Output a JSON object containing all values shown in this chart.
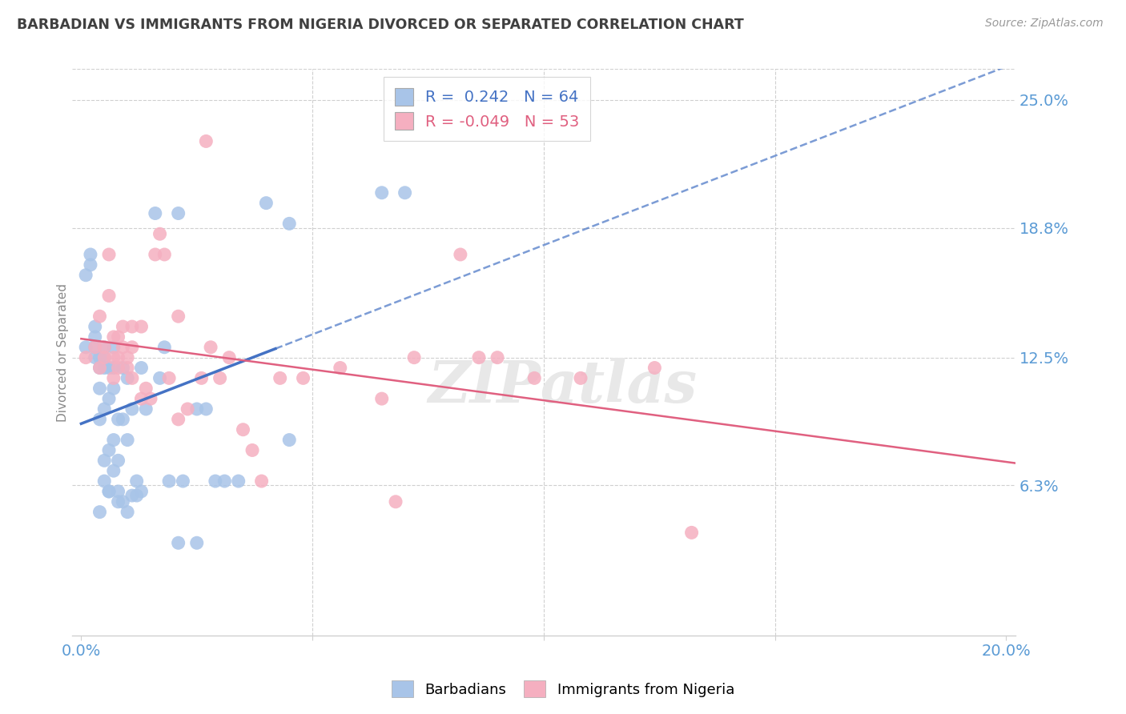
{
  "title": "BARBADIAN VS IMMIGRANTS FROM NIGERIA DIVORCED OR SEPARATED CORRELATION CHART",
  "source": "Source: ZipAtlas.com",
  "xlabel_ticks": [
    "0.0%",
    "",
    "",
    "",
    "20.0%"
  ],
  "xlabel_vals": [
    0.0,
    0.05,
    0.1,
    0.15,
    0.2
  ],
  "ylabel_ticks": [
    "6.3%",
    "12.5%",
    "18.8%",
    "25.0%"
  ],
  "ylabel_vals": [
    0.063,
    0.125,
    0.188,
    0.25
  ],
  "xlim": [
    -0.002,
    0.202
  ],
  "ylim": [
    -0.01,
    0.265
  ],
  "legend_blue_r": "0.242",
  "legend_blue_n": "64",
  "legend_pink_r": "-0.049",
  "legend_pink_n": "53",
  "blue_color": "#a8c4e8",
  "pink_color": "#f5afc0",
  "blue_line_color": "#4472c4",
  "pink_line_color": "#e06080",
  "axis_label_color": "#5b9bd5",
  "grid_color": "#d0d0d0",
  "title_color": "#404040",
  "blue_line_solid_end": 0.042,
  "blue_x": [
    0.001,
    0.001,
    0.002,
    0.002,
    0.003,
    0.003,
    0.003,
    0.003,
    0.004,
    0.004,
    0.004,
    0.004,
    0.004,
    0.005,
    0.005,
    0.005,
    0.005,
    0.005,
    0.005,
    0.006,
    0.006,
    0.006,
    0.006,
    0.006,
    0.007,
    0.007,
    0.007,
    0.007,
    0.007,
    0.008,
    0.008,
    0.008,
    0.008,
    0.009,
    0.009,
    0.009,
    0.01,
    0.01,
    0.01,
    0.011,
    0.011,
    0.012,
    0.012,
    0.013,
    0.013,
    0.014,
    0.016,
    0.017,
    0.018,
    0.019,
    0.021,
    0.022,
    0.025,
    0.027,
    0.029,
    0.031,
    0.034,
    0.04,
    0.045,
    0.021,
    0.025,
    0.045,
    0.065,
    0.07
  ],
  "blue_y": [
    0.13,
    0.165,
    0.17,
    0.175,
    0.125,
    0.13,
    0.135,
    0.14,
    0.095,
    0.11,
    0.12,
    0.125,
    0.05,
    0.065,
    0.075,
    0.1,
    0.12,
    0.125,
    0.13,
    0.06,
    0.08,
    0.105,
    0.12,
    0.06,
    0.085,
    0.12,
    0.13,
    0.07,
    0.11,
    0.055,
    0.06,
    0.075,
    0.095,
    0.055,
    0.095,
    0.12,
    0.05,
    0.085,
    0.115,
    0.058,
    0.1,
    0.058,
    0.065,
    0.06,
    0.12,
    0.1,
    0.195,
    0.115,
    0.13,
    0.065,
    0.195,
    0.065,
    0.1,
    0.1,
    0.065,
    0.065,
    0.065,
    0.2,
    0.19,
    0.035,
    0.035,
    0.085,
    0.205,
    0.205
  ],
  "pink_x": [
    0.001,
    0.003,
    0.004,
    0.004,
    0.005,
    0.005,
    0.006,
    0.006,
    0.007,
    0.007,
    0.007,
    0.008,
    0.008,
    0.008,
    0.009,
    0.009,
    0.01,
    0.01,
    0.011,
    0.011,
    0.011,
    0.013,
    0.013,
    0.014,
    0.015,
    0.016,
    0.017,
    0.018,
    0.019,
    0.021,
    0.021,
    0.023,
    0.026,
    0.027,
    0.028,
    0.03,
    0.032,
    0.035,
    0.037,
    0.039,
    0.043,
    0.048,
    0.056,
    0.065,
    0.068,
    0.072,
    0.082,
    0.086,
    0.09,
    0.098,
    0.108,
    0.124,
    0.132
  ],
  "pink_y": [
    0.125,
    0.13,
    0.12,
    0.145,
    0.125,
    0.13,
    0.155,
    0.175,
    0.125,
    0.135,
    0.115,
    0.125,
    0.135,
    0.12,
    0.14,
    0.13,
    0.12,
    0.125,
    0.115,
    0.13,
    0.14,
    0.105,
    0.14,
    0.11,
    0.105,
    0.175,
    0.185,
    0.175,
    0.115,
    0.095,
    0.145,
    0.1,
    0.115,
    0.23,
    0.13,
    0.115,
    0.125,
    0.09,
    0.08,
    0.065,
    0.115,
    0.115,
    0.12,
    0.105,
    0.055,
    0.125,
    0.175,
    0.125,
    0.125,
    0.115,
    0.115,
    0.12,
    0.04
  ]
}
